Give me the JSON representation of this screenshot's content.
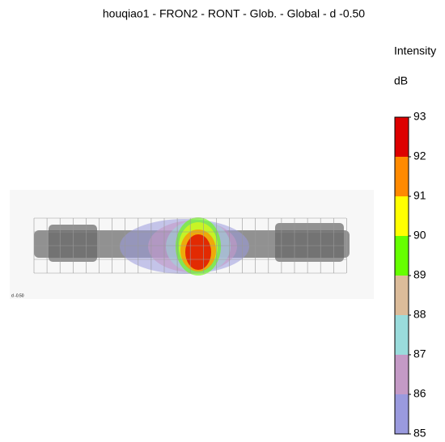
{
  "chart_data": {
    "type": "heatmap",
    "title": "houqiao1 - FRON2 - RONT - Glob. - Global - d -0.50",
    "colorbar_title": "Intensity",
    "colorbar_unit": "dB",
    "clim": [
      85,
      93
    ],
    "cticks": [
      85,
      86,
      87,
      88,
      89,
      90,
      91,
      92,
      93
    ],
    "colors": [
      "#9a9ade",
      "#c49ac6",
      "#9adcdc",
      "#dcbc9a",
      "#66ff00",
      "#ffff00",
      "#ff8a00",
      "#dd0000"
    ],
    "annotation": "d -0.50"
  }
}
